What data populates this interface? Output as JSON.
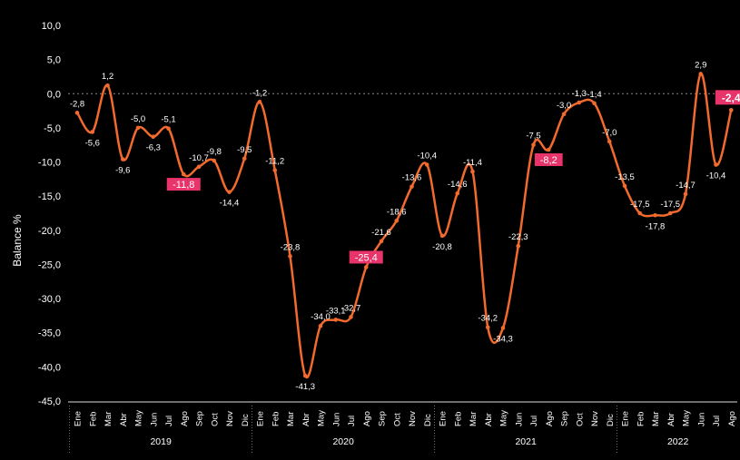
{
  "chart_data": {
    "type": "line",
    "ylabel": "Balance %",
    "ylim": [
      -45,
      10
    ],
    "yticks": [
      "10,0",
      "5,0",
      "0,0",
      "-5,0",
      "-10,0",
      "-15,0",
      "-20,0",
      "-25,0",
      "-30,0",
      "-35,0",
      "-40,0",
      "-45,0"
    ],
    "years": [
      {
        "label": "2019",
        "start": 0,
        "end": 11
      },
      {
        "label": "2020",
        "start": 12,
        "end": 23
      },
      {
        "label": "2021",
        "start": 24,
        "end": 35
      },
      {
        "label": "2022",
        "start": 36,
        "end": 43
      }
    ],
    "categories": [
      "Ene",
      "Feb",
      "Mar",
      "Abr",
      "May",
      "Jun",
      "Jul",
      "Ago",
      "Sep",
      "Oct",
      "Nov",
      "Dic",
      "Ene",
      "Feb",
      "Mar",
      "Abr",
      "May",
      "Jun",
      "Jul",
      "Ago",
      "Sep",
      "Oct",
      "Nov",
      "Dic",
      "Ene",
      "Feb",
      "Mar",
      "Abr",
      "May",
      "Jun",
      "Jul",
      "Ago",
      "Sep",
      "Oct",
      "Nov",
      "Dic",
      "Ene",
      "Feb",
      "Mar",
      "Abr",
      "May",
      "Jun",
      "Jul",
      "Ago"
    ],
    "values": [
      -2.8,
      -5.6,
      1.2,
      -9.6,
      -5.0,
      -6.3,
      -5.1,
      -11.8,
      -10.7,
      -9.8,
      -14.4,
      -9.5,
      -1.2,
      -11.2,
      -23.8,
      -41.3,
      -34.0,
      -33.1,
      -32.7,
      -25.4,
      -21.6,
      -18.6,
      -13.6,
      -10.4,
      -20.8,
      -14.6,
      -11.4,
      -34.2,
      -34.3,
      -22.3,
      -7.5,
      -8.2,
      -3.0,
      -1.3,
      -1.4,
      -7.0,
      -13.5,
      -17.5,
      -17.8,
      -17.5,
      -14.7,
      2.9,
      -10.4,
      -2.4
    ],
    "labels": [
      "-2,8",
      "-5,6",
      "1,2",
      "-9,6",
      "-5,0",
      "-6,3",
      "-5,1",
      "-11,8",
      "-10,7",
      "-9,8",
      "-14,4",
      "-9,5",
      "-1,2",
      "-11,2",
      "-23,8",
      "-41,3",
      "-34,0",
      "-33,1",
      "-32,7",
      "-25,4",
      "-21,6",
      "-18,6",
      "-13,6",
      "-10,4",
      "-20,8",
      "-14,6",
      "-11,4",
      "-34,2",
      "-34,3",
      "-22,3",
      "-7,5",
      "-8,2",
      "-3,0",
      "-1,3",
      "-1,4",
      "-7,0",
      "-13,5",
      "-17,5",
      "-17,8",
      "-17,5",
      "-14,7",
      "2,9",
      "-10,4",
      "-2,4"
    ],
    "highlighted": [
      7,
      19,
      31,
      43
    ],
    "colors": {
      "line": "#F26A2E",
      "highlight": "#E8336B",
      "text": "#FFFFFF",
      "axis": "#DDDDDD",
      "grid": "#888888",
      "background": "#000000"
    }
  }
}
